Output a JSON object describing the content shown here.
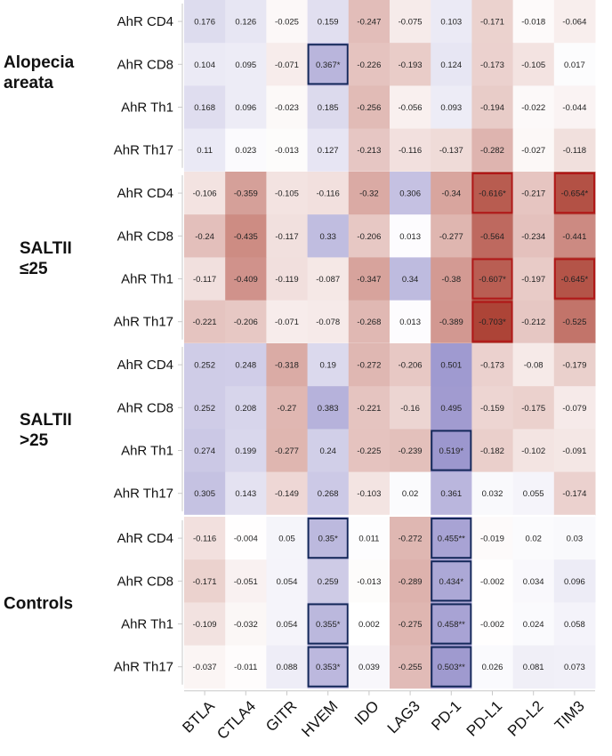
{
  "chart_data": {
    "type": "heatmap",
    "columns": [
      "BTLA",
      "CTLA4",
      "GITR",
      "HVEM",
      "IDO",
      "LAG3",
      "PD-1",
      "PD-L1",
      "PD-L2",
      "TIM3"
    ],
    "groups": [
      {
        "label_lines": [
          "Alopecia",
          "areata"
        ],
        "rows": [
          {
            "label": "AhR CD4",
            "values": [
              "0.176",
              "0.126",
              "-0.025",
              "0.159",
              "-0.247",
              "-0.075",
              "0.103",
              "-0.171",
              "-0.018",
              "-0.064"
            ]
          },
          {
            "label": "AhR CD8",
            "values": [
              "0.104",
              "0.095",
              "-0.071",
              "0.367*",
              "-0.226",
              "-0.193",
              "0.124",
              "-0.173",
              "-0.105",
              "0.017"
            ]
          },
          {
            "label": "AhR Th1",
            "values": [
              "0.168",
              "0.096",
              "-0.023",
              "0.185",
              "-0.256",
              "-0.056",
              "0.093",
              "-0.194",
              "-0.022",
              "-0.044"
            ]
          },
          {
            "label": "AhR Th17",
            "values": [
              "0.11",
              "0.023",
              "-0.013",
              "0.127",
              "-0.213",
              "-0.116",
              "-0.137",
              "-0.282",
              "-0.027",
              "-0.118"
            ]
          }
        ]
      },
      {
        "label_lines": [
          "SALTII",
          "≤25"
        ],
        "rows": [
          {
            "label": "AhR CD4",
            "values": [
              "-0.106",
              "-0.359",
              "-0.105",
              "-0.116",
              "-0.32",
              "0.306",
              "-0.34",
              "-0.616*",
              "-0.217",
              "-0.654*"
            ]
          },
          {
            "label": "AhR CD8",
            "values": [
              "-0.24",
              "-0.435",
              "-0.117",
              "0.33",
              "-0.206",
              "0.013",
              "-0.277",
              "-0.564",
              "-0.234",
              "-0.441"
            ]
          },
          {
            "label": "AhR Th1",
            "values": [
              "-0.117",
              "-0.409",
              "-0.119",
              "-0.087",
              "-0.347",
              "0.34",
              "-0.38",
              "-0.607*",
              "-0.197",
              "-0.645*"
            ]
          },
          {
            "label": "AhR Th17",
            "values": [
              "-0.221",
              "-0.206",
              "-0.071",
              "-0.078",
              "-0.268",
              "0.013",
              "-0.389",
              "-0.703*",
              "-0.212",
              "-0.525"
            ]
          }
        ]
      },
      {
        "label_lines": [
          "SALTII",
          ">25"
        ],
        "rows": [
          {
            "label": "AhR CD4",
            "values": [
              "0.252",
              "0.248",
              "-0.318",
              "0.19",
              "-0.272",
              "-0.206",
              "0.501",
              "-0.173",
              "-0.08",
              "-0.179"
            ]
          },
          {
            "label": "AhR CD8",
            "values": [
              "0.252",
              "0.208",
              "-0.27",
              "0.383",
              "-0.221",
              "-0.16",
              "0.495",
              "-0.159",
              "-0.175",
              "-0.079"
            ]
          },
          {
            "label": "AhR Th1",
            "values": [
              "0.274",
              "0.199",
              "-0.277",
              "0.24",
              "-0.225",
              "-0.239",
              "0.519*",
              "-0.182",
              "-0.102",
              "-0.091"
            ]
          },
          {
            "label": "AhR Th17",
            "values": [
              "0.305",
              "0.143",
              "-0.149",
              "0.268",
              "-0.103",
              "0.02",
              "0.361",
              "0.032",
              "0.055",
              "-0.174"
            ]
          }
        ]
      },
      {
        "label_lines": [
          "Controls"
        ],
        "rows": [
          {
            "label": "AhR CD4",
            "values": [
              "-0.116",
              "-0.004",
              "0.05",
              "0.35*",
              "0.011",
              "-0.272",
              "0.455**",
              "-0.019",
              "0.02",
              "0.03"
            ]
          },
          {
            "label": "AhR CD8",
            "values": [
              "-0.171",
              "-0.051",
              "0.054",
              "0.259",
              "-0.013",
              "-0.289",
              "0.434*",
              "-0.002",
              "0.034",
              "0.096"
            ]
          },
          {
            "label": "AhR Th1",
            "values": [
              "-0.109",
              "-0.032",
              "0.054",
              "0.355*",
              "0.002",
              "-0.275",
              "0.458**",
              "-0.002",
              "0.024",
              "0.058"
            ]
          },
          {
            "label": "AhR Th17",
            "values": [
              "-0.037",
              "-0.011",
              "0.088",
              "0.353*",
              "0.039",
              "-0.255",
              "0.503**",
              "0.026",
              "0.081",
              "0.073"
            ]
          }
        ]
      }
    ],
    "colors": {
      "positive": "#7068b8",
      "negative": "#a8382a",
      "positive_box": "#14285a",
      "negative_box": "#b01818"
    }
  }
}
